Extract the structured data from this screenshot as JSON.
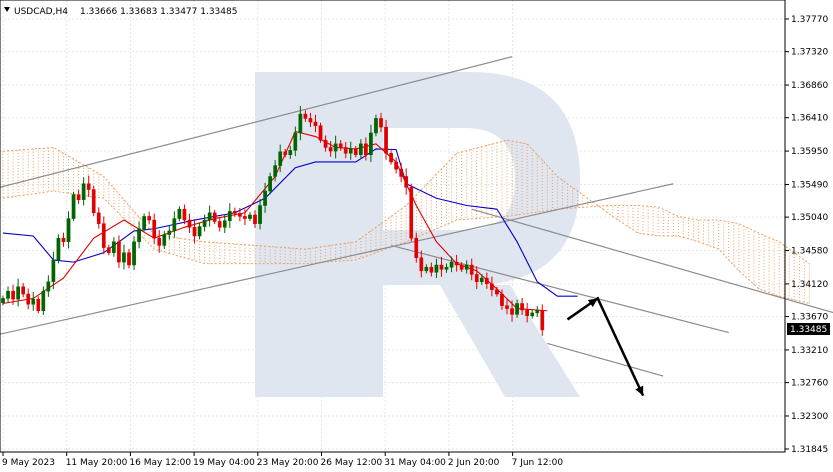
{
  "header": {
    "symbol_timeframe": "USDCAD,H4",
    "ohlc": "1.33666 1.33683 1.33477 1.33485"
  },
  "price_badge": "1.33485",
  "colors": {
    "bull": "#006400",
    "bear": "#e00000",
    "tenkan": "#e00000",
    "kijun": "#0000c8",
    "cloud": "#f0a060",
    "channel": "#8c8c8c",
    "forecast": "#000000",
    "grid": "#e6e6e6",
    "watermark": "#dfe6f0",
    "badge_bg": "#000000",
    "badge_text": "#ffffff"
  },
  "watermark_icon": "logo-watermark",
  "chart_data": {
    "type": "candlestick",
    "title": "USDCAD,H4",
    "ylim": [
      1.31845,
      1.38045
    ],
    "y_ticks": [
      "1.37770",
      "1.37320",
      "1.36860",
      "1.36410",
      "1.35950",
      "1.35490",
      "1.35040",
      "1.34580",
      "1.34120",
      "1.33670",
      "1.33210",
      "1.32760",
      "1.32300",
      "1.31845"
    ],
    "x_ticks": [
      "9 May 2023",
      "11 May 20:00",
      "16 May 12:00",
      "19 May 04:00",
      "23 May 20:00",
      "26 May 12:00",
      "31 May 04:00",
      "2 Jun 20:00",
      "7 Jun 12:00"
    ],
    "candles": [
      1.3392,
      1.3402,
      1.3391,
      1.3408,
      1.3398,
      1.3384,
      1.3391,
      1.3375,
      1.3402,
      1.3415,
      1.3445,
      1.3475,
      1.347,
      1.3502,
      1.3535,
      1.3528,
      1.355,
      1.3542,
      1.351,
      1.3495,
      1.3462,
      1.3455,
      1.347,
      1.3442,
      1.3455,
      1.3438,
      1.347,
      1.3488,
      1.3505,
      1.35,
      1.3475,
      1.3465,
      1.348,
      1.3485,
      1.3502,
      1.3515,
      1.35,
      1.349,
      1.3478,
      1.3491,
      1.35,
      1.351,
      1.3498,
      1.349,
      1.3499,
      1.3512,
      1.3509,
      1.3505,
      1.3502,
      1.3507,
      1.3495,
      1.352,
      1.354,
      1.356,
      1.3575,
      1.3594,
      1.359,
      1.3596,
      1.362,
      1.3646,
      1.364,
      1.3635,
      1.363,
      1.361,
      1.36,
      1.3595,
      1.3605,
      1.36,
      1.3592,
      1.3598,
      1.359,
      1.3605,
      1.359,
      1.362,
      1.364,
      1.3628,
      1.3592,
      1.358,
      1.357,
      1.356,
      1.3545,
      1.3475,
      1.3448,
      1.343,
      1.3435,
      1.3428,
      1.3438,
      1.3432,
      1.3435,
      1.3442,
      1.3438,
      1.3432,
      1.3438,
      1.3425,
      1.3415,
      1.342,
      1.3412,
      1.3404,
      1.3398,
      1.3382,
      1.3378,
      1.337,
      1.3385,
      1.3376,
      1.3368,
      1.3372,
      1.3375,
      1.33485
    ],
    "tenkan": [
      [
        0,
        1.3385
      ],
      [
        6,
        1.3392
      ],
      [
        12,
        1.342
      ],
      [
        18,
        1.3475
      ],
      [
        24,
        1.35
      ],
      [
        30,
        1.3475
      ],
      [
        36,
        1.349
      ],
      [
        42,
        1.3502
      ],
      [
        48,
        1.351
      ],
      [
        54,
        1.356
      ],
      [
        58,
        1.3622
      ],
      [
        62,
        1.3615
      ],
      [
        66,
        1.36
      ],
      [
        70,
        1.3598
      ],
      [
        74,
        1.3605
      ],
      [
        78,
        1.358
      ],
      [
        82,
        1.352
      ],
      [
        86,
        1.347
      ],
      [
        90,
        1.344
      ],
      [
        94,
        1.343
      ],
      [
        98,
        1.3405
      ],
      [
        102,
        1.3378
      ],
      [
        108,
        1.3375
      ]
    ],
    "kijun": [
      [
        0,
        1.3482
      ],
      [
        6,
        1.3478
      ],
      [
        10,
        1.3445
      ],
      [
        14,
        1.3442
      ],
      [
        20,
        1.3455
      ],
      [
        26,
        1.3485
      ],
      [
        30,
        1.3488
      ],
      [
        38,
        1.35
      ],
      [
        46,
        1.351
      ],
      [
        52,
        1.353
      ],
      [
        58,
        1.3572
      ],
      [
        62,
        1.358
      ],
      [
        70,
        1.358
      ],
      [
        74,
        1.3598
      ],
      [
        78,
        1.3597
      ],
      [
        80,
        1.355
      ],
      [
        86,
        1.353
      ],
      [
        92,
        1.352
      ],
      [
        98,
        1.3515
      ],
      [
        102,
        1.347
      ],
      [
        106,
        1.3415
      ],
      [
        110,
        1.3395
      ],
      [
        114,
        1.3395
      ]
    ],
    "cloud": {
      "span_a": [
        [
          0,
          1.3595
        ],
        [
          10,
          1.36
        ],
        [
          20,
          1.356
        ],
        [
          30,
          1.348
        ],
        [
          40,
          1.347
        ],
        [
          50,
          1.3465
        ],
        [
          60,
          1.346
        ],
        [
          70,
          1.347
        ],
        [
          80,
          1.352
        ],
        [
          90,
          1.3592
        ],
        [
          100,
          1.361
        ],
        [
          104,
          1.3605
        ],
        [
          110,
          1.356
        ],
        [
          116,
          1.353
        ],
        [
          122,
          1.35
        ],
        [
          126,
          1.3482
        ],
        [
          130,
          1.3478
        ],
        [
          134,
          1.3478
        ],
        [
          138,
          1.347
        ],
        [
          142,
          1.346
        ],
        [
          146,
          1.343
        ],
        [
          150,
          1.3405
        ],
        [
          154,
          1.3395
        ],
        [
          160,
          1.3385
        ]
      ],
      "span_b": [
        [
          0,
          1.353
        ],
        [
          10,
          1.354
        ],
        [
          20,
          1.353
        ],
        [
          30,
          1.346
        ],
        [
          40,
          1.344
        ],
        [
          50,
          1.344
        ],
        [
          60,
          1.344
        ],
        [
          70,
          1.3445
        ],
        [
          80,
          1.347
        ],
        [
          90,
          1.35
        ],
        [
          100,
          1.3505
        ],
        [
          110,
          1.3515
        ],
        [
          120,
          1.352
        ],
        [
          126,
          1.352
        ],
        [
          130,
          1.3518
        ],
        [
          134,
          1.3505
        ],
        [
          138,
          1.35
        ],
        [
          142,
          1.35
        ],
        [
          146,
          1.3495
        ],
        [
          150,
          1.3482
        ],
        [
          154,
          1.347
        ],
        [
          160,
          1.344
        ]
      ]
    },
    "channels": [
      {
        "name": "",
        "points": [
          [
            -12,
            1.3525
          ],
          [
            101,
            1.3725
          ]
        ]
      },
      {
        "name": "",
        "points": [
          [
            -12,
            1.3325
          ],
          [
            133,
            1.355
          ]
        ]
      },
      {
        "name": "",
        "points": [
          [
            77,
            1.3465
          ],
          [
            144,
            1.3345
          ]
        ]
      },
      {
        "name": "",
        "points": [
          [
            93,
            1.3515
          ],
          [
            172,
            1.3358
          ]
        ]
      },
      {
        "name": "",
        "points": [
          [
            108,
            1.333
          ],
          [
            131,
            1.3285
          ]
        ]
      }
    ],
    "forecast": [
      [
        112,
        1.3363
      ],
      [
        118,
        1.3392
      ],
      [
        127,
        1.3258
      ]
    ]
  }
}
